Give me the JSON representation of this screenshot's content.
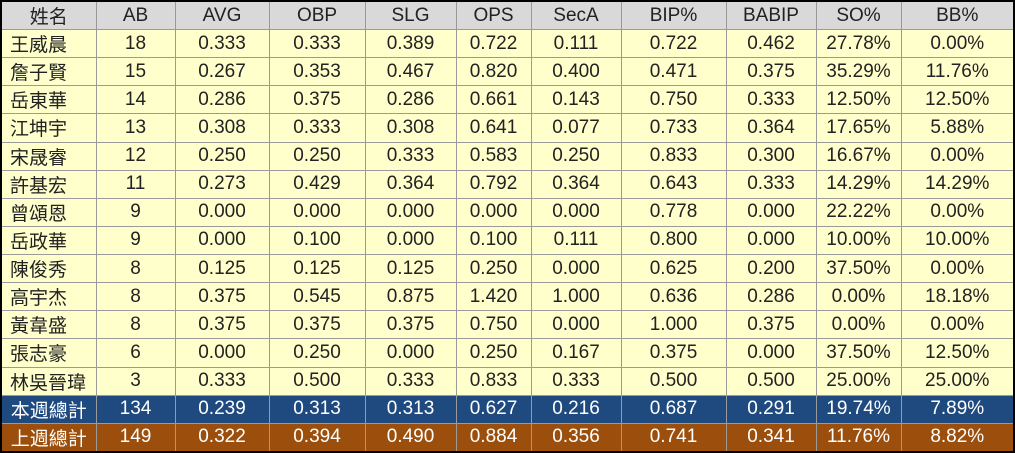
{
  "table": {
    "header": [
      "姓名",
      "AB",
      "AVG",
      "OBP",
      "SLG",
      "OPS",
      "SecA",
      "BIP%",
      "BABIP",
      "SO%",
      "BB%"
    ],
    "rows": [
      [
        "王威晨",
        "18",
        "0.333",
        "0.333",
        "0.389",
        "0.722",
        "0.111",
        "0.722",
        "0.462",
        "27.78%",
        "0.00%"
      ],
      [
        "詹子賢",
        "15",
        "0.267",
        "0.353",
        "0.467",
        "0.820",
        "0.400",
        "0.471",
        "0.375",
        "35.29%",
        "11.76%"
      ],
      [
        "岳東華",
        "14",
        "0.286",
        "0.375",
        "0.286",
        "0.661",
        "0.143",
        "0.750",
        "0.333",
        "12.50%",
        "12.50%"
      ],
      [
        "江坤宇",
        "13",
        "0.308",
        "0.333",
        "0.308",
        "0.641",
        "0.077",
        "0.733",
        "0.364",
        "17.65%",
        "5.88%"
      ],
      [
        "宋晟睿",
        "12",
        "0.250",
        "0.250",
        "0.333",
        "0.583",
        "0.250",
        "0.833",
        "0.300",
        "16.67%",
        "0.00%"
      ],
      [
        "許基宏",
        "11",
        "0.273",
        "0.429",
        "0.364",
        "0.792",
        "0.364",
        "0.643",
        "0.333",
        "14.29%",
        "14.29%"
      ],
      [
        "曾頌恩",
        "9",
        "0.000",
        "0.000",
        "0.000",
        "0.000",
        "0.000",
        "0.778",
        "0.000",
        "22.22%",
        "0.00%"
      ],
      [
        "岳政華",
        "9",
        "0.000",
        "0.100",
        "0.000",
        "0.100",
        "0.111",
        "0.800",
        "0.000",
        "10.00%",
        "10.00%"
      ],
      [
        "陳俊秀",
        "8",
        "0.125",
        "0.125",
        "0.125",
        "0.250",
        "0.000",
        "0.625",
        "0.200",
        "37.50%",
        "0.00%"
      ],
      [
        "高宇杰",
        "8",
        "0.375",
        "0.545",
        "0.875",
        "1.420",
        "1.000",
        "0.636",
        "0.286",
        "0.00%",
        "18.18%"
      ],
      [
        "黃韋盛",
        "8",
        "0.375",
        "0.375",
        "0.375",
        "0.750",
        "0.000",
        "1.000",
        "0.375",
        "0.00%",
        "0.00%"
      ],
      [
        "張志豪",
        "6",
        "0.000",
        "0.250",
        "0.000",
        "0.250",
        "0.167",
        "0.375",
        "0.000",
        "37.50%",
        "12.50%"
      ],
      [
        "林吳晉瑋",
        "3",
        "0.333",
        "0.500",
        "0.333",
        "0.833",
        "0.333",
        "0.500",
        "0.500",
        "25.00%",
        "25.00%"
      ]
    ],
    "totals": [
      [
        "本週總計",
        "134",
        "0.239",
        "0.313",
        "0.313",
        "0.627",
        "0.216",
        "0.687",
        "0.291",
        "19.74%",
        "7.89%"
      ],
      [
        "上週總計",
        "149",
        "0.322",
        "0.394",
        "0.490",
        "0.884",
        "0.356",
        "0.741",
        "0.341",
        "11.76%",
        "8.82%"
      ]
    ]
  }
}
